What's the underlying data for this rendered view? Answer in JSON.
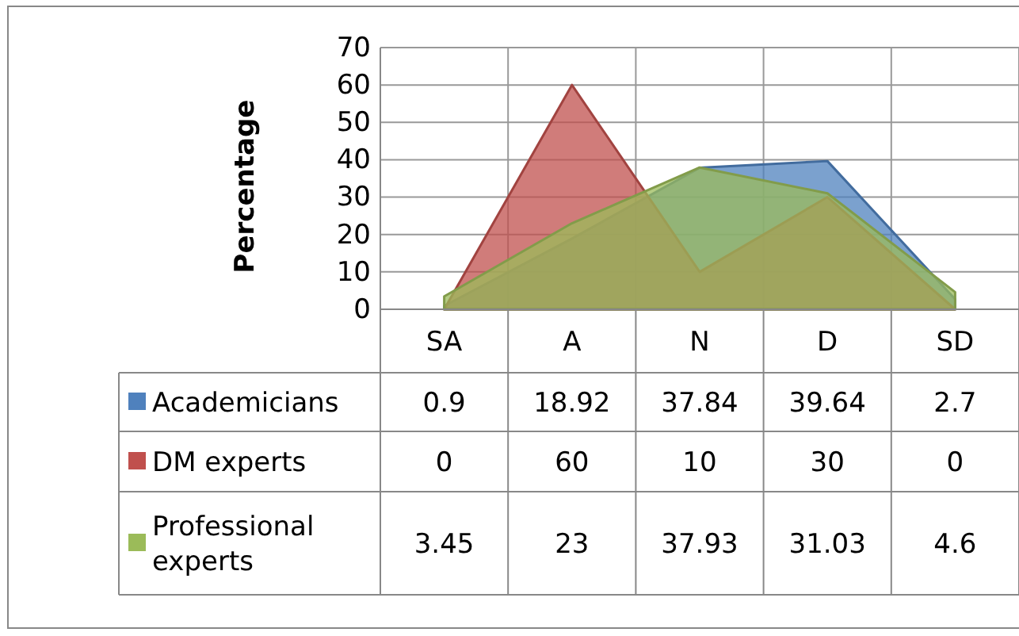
{
  "chart_data": {
    "type": "area",
    "ylabel": "Percentage",
    "categories": [
      "SA",
      "A",
      "N",
      "D",
      "SD"
    ],
    "series": [
      {
        "name": "Academicians",
        "color": "#4f81bd",
        "values": [
          0.9,
          18.92,
          37.84,
          39.64,
          2.7
        ]
      },
      {
        "name": "DM experts",
        "color": "#c0504d",
        "values": [
          0,
          60,
          10,
          30,
          0
        ]
      },
      {
        "name": "Professional experts",
        "color": "#9bbb59",
        "values": [
          3.45,
          23,
          37.93,
          31.03,
          4.6
        ]
      }
    ],
    "ylim": [
      0,
      70
    ],
    "yticks": [
      0,
      10,
      20,
      30,
      40,
      50,
      60,
      70
    ],
    "grid": "y",
    "data_labels": true,
    "legend": "bottom left"
  }
}
